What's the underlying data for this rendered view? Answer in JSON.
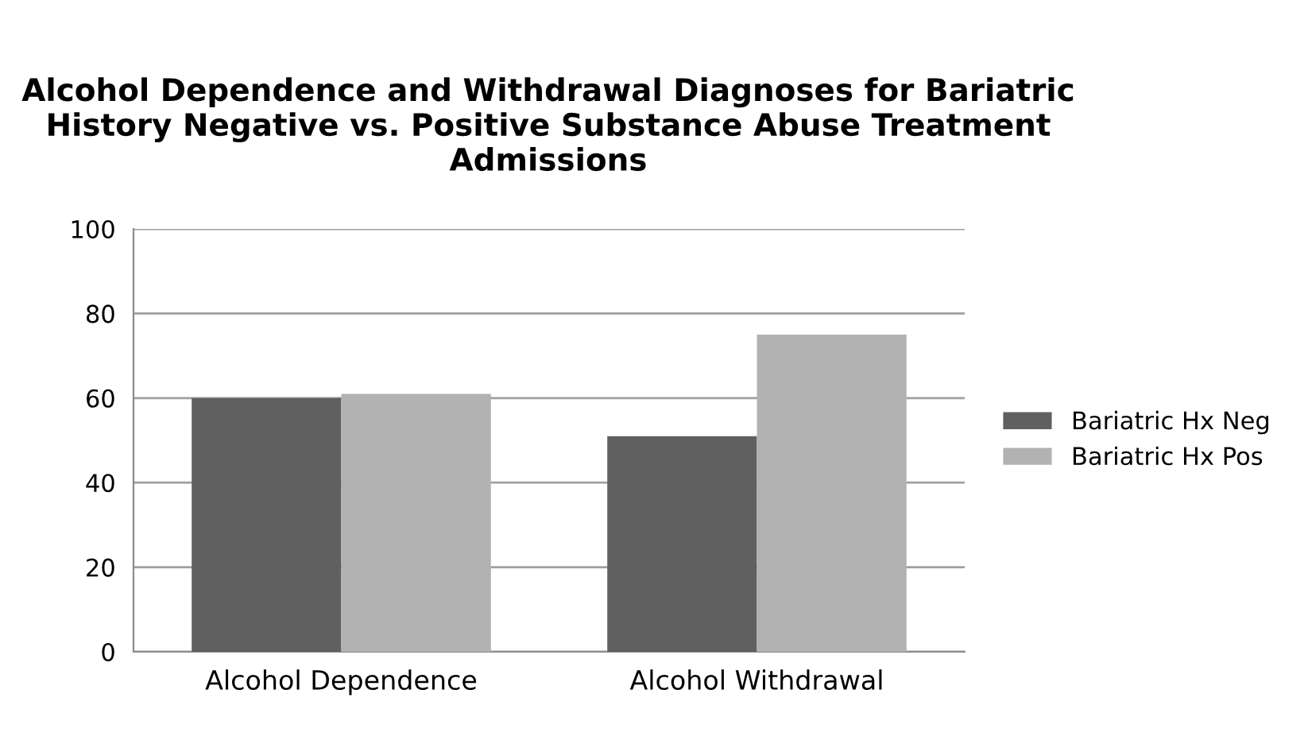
{
  "chart_data": {
    "type": "bar",
    "title": "Alcohol Dependence and Withdrawal Diagnoses for Bariatric History Negative vs. Positive Substance Abuse Treatment Admissions",
    "categories": [
      "Alcohol Dependence",
      "Alcohol Withdrawal"
    ],
    "series": [
      {
        "name": "Bariatric Hx Neg",
        "color": "#606060",
        "values": [
          60,
          51
        ]
      },
      {
        "name": "Bariatric Hx Pos",
        "color": "#b2b2b2",
        "values": [
          61,
          75
        ]
      }
    ],
    "ylim": [
      0,
      100
    ],
    "yticks": [
      0,
      20,
      40,
      60,
      80,
      100
    ],
    "grid": "y",
    "legend": "right"
  }
}
